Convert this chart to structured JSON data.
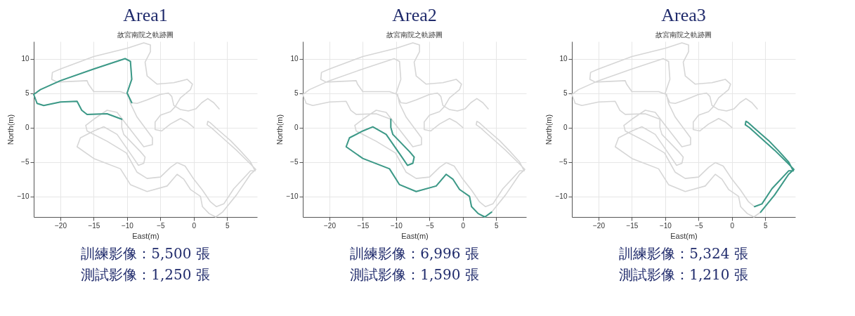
{
  "chart_data": [
    {
      "type": "line",
      "title": "Area1",
      "subtitle": "故宮南院之軌跡圖",
      "xlabel": "East(m)",
      "ylabel": "North(m)",
      "xlim": [
        -24,
        9.5
      ],
      "ylim": [
        -13,
        12.5
      ],
      "xticks": [
        -20,
        -15,
        -10,
        -5,
        0,
        5
      ],
      "yticks": [
        -10,
        -5,
        0,
        5,
        10
      ],
      "grid": true,
      "annotations": [
        "訓練影像：5,500 張",
        "測試影像：1,250 張"
      ],
      "series": [
        {
          "color": "#d6d6d6",
          "x": [
            3.8,
            3,
            2.1,
            1.2,
            0.3,
            -0.8,
            -2,
            -3,
            -3.3,
            -3.8,
            -5,
            -7,
            -8.5,
            -9.3,
            -10,
            -9.3,
            -9.5,
            -10.3,
            -15,
            -20,
            -23,
            -24,
            -23.5,
            -22.5,
            -20,
            -17.5,
            -16.8,
            -16,
            -13,
            -10.8,
            -10.8,
            -10.5,
            -8,
            -7.3,
            -7.5,
            -8.3,
            -9,
            -11.5,
            -13.5,
            -15,
            -17,
            -17.5,
            -15,
            -11,
            -9.5,
            -7,
            -4,
            -2.5,
            -1.5,
            -0.5,
            1,
            1.3,
            2.3,
            3.3,
            4.3,
            6.4,
            8.5,
            9.3,
            8.5,
            6.4,
            4.2,
            2.6,
            2,
            2.1,
            2.45,
            3.6,
            5.5,
            7,
            8.5,
            9.2,
            8.5,
            6,
            4.5,
            3.4,
            2.5,
            1.3,
            0,
            -1.3,
            -2.5,
            -3.5,
            -5,
            -7,
            -8.5,
            -9.2,
            -10.1,
            -13,
            -16,
            -16.2,
            -15,
            -13,
            -11.5,
            -10,
            -7.5,
            -6.2,
            -6.2,
            -8.5,
            -9.5,
            -9.8,
            -11,
            -15,
            -15.8,
            -16,
            -20.5,
            -21.3,
            -21.2,
            -20,
            -15,
            -10,
            -7.5,
            -6.5,
            -6.5,
            -7.3,
            -7,
            -5.5,
            -3,
            -1,
            -0.2,
            -0.5,
            -2,
            -2.8,
            -3.5,
            -5,
            -5.8,
            -5.8,
            -4.8,
            -3.5,
            -2,
            -1,
            0
          ],
          "values": [
            2.7,
            3.6,
            4.2,
            3.6,
            2.7,
            2.4,
            2.6,
            3.2,
            4.5,
            5,
            4.8,
            4,
            3.5,
            3.6,
            5,
            7,
            9.6,
            10,
            8.5,
            6.8,
            5.5,
            4.8,
            3.5,
            3.2,
            3.7,
            3.8,
            2.5,
            1.9,
            2,
            1.2,
            0,
            -1,
            -3.5,
            -4.3,
            -5.2,
            -5.5,
            -4.5,
            -1,
            0.1,
            -0.5,
            -1.5,
            -2.8,
            -4.5,
            -6,
            -8.3,
            -9.3,
            -8.5,
            -6.8,
            -7.5,
            -9,
            -10,
            -11.5,
            -12.5,
            -13,
            -12.3,
            -9.8,
            -6.8,
            -6.1,
            -5.3,
            -3.3,
            -1.4,
            0,
            0.4,
            0.9,
            0.7,
            -0.3,
            -1.9,
            -3.4,
            -5,
            -6.3,
            -6.3,
            -8.9,
            -11.1,
            -11.5,
            -10.8,
            -9.1,
            -7.5,
            -5.6,
            -5.1,
            -5.8,
            -7.2,
            -7.4,
            -6.5,
            -5.3,
            -3.7,
            -2,
            -0.5,
            0.3,
            1.2,
            2.5,
            2.2,
            0.3,
            -2.8,
            -2.5,
            -1.5,
            1.5,
            3.5,
            4.8,
            5.2,
            5.2,
            6.3,
            6.8,
            6.6,
            7,
            8,
            8.5,
            10.3,
            11.5,
            12.3,
            12,
            11,
            9.5,
            7.5,
            6.3,
            6.5,
            7,
            6.3,
            5.5,
            4.3,
            3,
            2.3,
            1.8,
            0.8,
            -0.3,
            -0.5,
            0.5,
            1.3,
            0.8,
            0
          ]
        },
        {
          "color": "#3c9a88",
          "x": [
            -9.3,
            -10,
            -9.3,
            -9.5,
            -10.3,
            -15,
            -20,
            -23,
            -24,
            -23.5,
            -22.5,
            -20,
            -17.5,
            -16.8,
            -16,
            -13,
            -10.8
          ],
          "values": [
            3.6,
            5,
            7,
            9.6,
            10,
            8.5,
            6.8,
            5.5,
            4.8,
            3.5,
            3.2,
            3.7,
            3.8,
            2.5,
            1.9,
            2,
            1.2
          ]
        }
      ]
    },
    {
      "type": "line",
      "title": "Area2",
      "subtitle": "故宮南院之軌跡圖",
      "xlabel": "East(m)",
      "ylabel": "North(m)",
      "xlim": [
        -24,
        9.5
      ],
      "ylim": [
        -13,
        12.5
      ],
      "xticks": [
        -20,
        -15,
        -10,
        -5,
        0,
        5
      ],
      "yticks": [
        -10,
        -5,
        0,
        5,
        10
      ],
      "grid": true,
      "annotations": [
        "訓練影像：6,996 張",
        "測試影像：1,590 張"
      ],
      "series": [
        {
          "color": "#d6d6d6",
          "x": [
            3.8,
            3,
            2.1,
            1.2,
            0.3,
            -0.8,
            -2,
            -3,
            -3.3,
            -3.8,
            -5,
            -7,
            -8.5,
            -9.3,
            -10,
            -9.3,
            -9.5,
            -10.3,
            -15,
            -20,
            -23,
            -24,
            -23.5,
            -22.5,
            -20,
            -17.5,
            -16.8,
            -16,
            -13,
            -10.8,
            -10.8,
            -10.5,
            -8,
            -7.3,
            -7.5,
            -8.3,
            -9,
            -11.5,
            -13.5,
            -15,
            -17,
            -17.5,
            -15,
            -11,
            -9.5,
            -7,
            -4,
            -2.5,
            -1.5,
            -0.5,
            1,
            1.3,
            2.3,
            3.3,
            4.3,
            6.4,
            8.5,
            9.3,
            8.5,
            6.4,
            4.2,
            2.6,
            2,
            2.1,
            2.45,
            3.6,
            5.5,
            7,
            8.5,
            9.2,
            8.5,
            6,
            4.5,
            3.4,
            2.5,
            1.3,
            0,
            -1.3,
            -2.5,
            -3.5,
            -5,
            -7,
            -8.5,
            -9.2,
            -10.1,
            -13,
            -16,
            -16.2,
            -15,
            -13,
            -11.5,
            -10,
            -7.5,
            -6.2,
            -6.2,
            -8.5,
            -9.5,
            -9.8,
            -11,
            -15,
            -15.8,
            -16,
            -20.5,
            -21.3,
            -21.2,
            -20,
            -15,
            -10,
            -7.5,
            -6.5,
            -6.5,
            -7.3,
            -7,
            -5.5,
            -3,
            -1,
            -0.2,
            -0.5,
            -2,
            -2.8,
            -3.5,
            -5,
            -5.8,
            -5.8,
            -4.8,
            -3.5,
            -2,
            -1,
            0
          ],
          "values": [
            2.7,
            3.6,
            4.2,
            3.6,
            2.7,
            2.4,
            2.6,
            3.2,
            4.5,
            5,
            4.8,
            4,
            3.5,
            3.6,
            5,
            7,
            9.6,
            10,
            8.5,
            6.8,
            5.5,
            4.8,
            3.5,
            3.2,
            3.7,
            3.8,
            2.5,
            1.9,
            2,
            1.2,
            0,
            -1,
            -3.5,
            -4.3,
            -5.2,
            -5.5,
            -4.5,
            -1,
            0.1,
            -0.5,
            -1.5,
            -2.8,
            -4.5,
            -6,
            -8.3,
            -9.3,
            -8.5,
            -6.8,
            -7.5,
            -9,
            -10,
            -11.5,
            -12.5,
            -13,
            -12.3,
            -9.8,
            -6.8,
            -6.1,
            -5.3,
            -3.3,
            -1.4,
            0,
            0.4,
            0.9,
            0.7,
            -0.3,
            -1.9,
            -3.4,
            -5,
            -6.3,
            -6.3,
            -8.9,
            -11.1,
            -11.5,
            -10.8,
            -9.1,
            -7.5,
            -5.6,
            -5.1,
            -5.8,
            -7.2,
            -7.4,
            -6.5,
            -5.3,
            -3.7,
            -2,
            -0.5,
            0.3,
            1.2,
            2.5,
            2.2,
            0.3,
            -2.8,
            -2.5,
            -1.5,
            1.5,
            3.5,
            4.8,
            5.2,
            5.2,
            6.3,
            6.8,
            6.6,
            7,
            8,
            8.5,
            10.3,
            11.5,
            12.3,
            12,
            11,
            9.5,
            7.5,
            6.3,
            6.5,
            7,
            6.3,
            5.5,
            4.3,
            3,
            2.3,
            1.8,
            0.8,
            -0.3,
            -0.5,
            0.5,
            1.3,
            0.8,
            0
          ]
        },
        {
          "color": "#3c9a88",
          "x": [
            -10.8,
            -10.8,
            -10.5,
            -8,
            -7.3,
            -7.5,
            -8.3,
            -9,
            -11.5,
            -13.5,
            -15,
            -17,
            -17.5,
            -15,
            -11,
            -9.5,
            -7,
            -4,
            -2.5,
            -1.5,
            -0.5,
            1,
            1.3,
            2.3,
            3.3,
            4.3
          ],
          "values": [
            1.2,
            0,
            -1,
            -3.5,
            -4.3,
            -5.2,
            -5.5,
            -4.5,
            -1,
            0.1,
            -0.5,
            -1.5,
            -2.8,
            -4.5,
            -6,
            -8.3,
            -9.3,
            -8.5,
            -6.8,
            -7.5,
            -9,
            -10,
            -11.5,
            -12.5,
            -13,
            -12.3
          ]
        }
      ]
    },
    {
      "type": "line",
      "title": "Area3",
      "subtitle": "故宮南院之軌跡圖",
      "xlabel": "East(m)",
      "ylabel": "North(m)",
      "xlim": [
        -24,
        9.5
      ],
      "ylim": [
        -13,
        12.5
      ],
      "xticks": [
        -20,
        -15,
        -10,
        -5,
        0,
        5
      ],
      "yticks": [
        -10,
        -5,
        0,
        5,
        10
      ],
      "grid": true,
      "annotations": [
        "訓練影像：5,324 張",
        "測試影像：1,210 張"
      ],
      "series": [
        {
          "color": "#d6d6d6",
          "x": [
            3.8,
            3,
            2.1,
            1.2,
            0.3,
            -0.8,
            -2,
            -3,
            -3.3,
            -3.8,
            -5,
            -7,
            -8.5,
            -9.3,
            -10,
            -9.3,
            -9.5,
            -10.3,
            -15,
            -20,
            -23,
            -24,
            -23.5,
            -22.5,
            -20,
            -17.5,
            -16.8,
            -16,
            -13,
            -10.8,
            -10.8,
            -10.5,
            -8,
            -7.3,
            -7.5,
            -8.3,
            -9,
            -11.5,
            -13.5,
            -15,
            -17,
            -17.5,
            -15,
            -11,
            -9.5,
            -7,
            -4,
            -2.5,
            -1.5,
            -0.5,
            1,
            1.3,
            2.3,
            3.3,
            4.3,
            6.4,
            8.5,
            9.3,
            8.5,
            6.4,
            4.2,
            2.6,
            2,
            2.1,
            2.45,
            3.6,
            5.5,
            7,
            8.5,
            9.2,
            8.5,
            6,
            4.5,
            3.4,
            2.5,
            1.3,
            0,
            -1.3,
            -2.5,
            -3.5,
            -5,
            -7,
            -8.5,
            -9.2,
            -10.1,
            -13,
            -16,
            -16.2,
            -15,
            -13,
            -11.5,
            -10,
            -7.5,
            -6.2,
            -6.2,
            -8.5,
            -9.5,
            -9.8,
            -11,
            -15,
            -15.8,
            -16,
            -20.5,
            -21.3,
            -21.2,
            -20,
            -15,
            -10,
            -7.5,
            -6.5,
            -6.5,
            -7.3,
            -7,
            -5.5,
            -3,
            -1,
            -0.2,
            -0.5,
            -2,
            -2.8,
            -3.5,
            -5,
            -5.8,
            -5.8,
            -4.8,
            -3.5,
            -2,
            -1,
            0
          ],
          "values": [
            2.7,
            3.6,
            4.2,
            3.6,
            2.7,
            2.4,
            2.6,
            3.2,
            4.5,
            5,
            4.8,
            4,
            3.5,
            3.6,
            5,
            7,
            9.6,
            10,
            8.5,
            6.8,
            5.5,
            4.8,
            3.5,
            3.2,
            3.7,
            3.8,
            2.5,
            1.9,
            2,
            1.2,
            0,
            -1,
            -3.5,
            -4.3,
            -5.2,
            -5.5,
            -4.5,
            -1,
            0.1,
            -0.5,
            -1.5,
            -2.8,
            -4.5,
            -6,
            -8.3,
            -9.3,
            -8.5,
            -6.8,
            -7.5,
            -9,
            -10,
            -11.5,
            -12.5,
            -13,
            -12.3,
            -9.8,
            -6.8,
            -6.1,
            -5.3,
            -3.3,
            -1.4,
            0,
            0.4,
            0.9,
            0.7,
            -0.3,
            -1.9,
            -3.4,
            -5,
            -6.3,
            -6.3,
            -8.9,
            -11.1,
            -11.5,
            -10.8,
            -9.1,
            -7.5,
            -5.6,
            -5.1,
            -5.8,
            -7.2,
            -7.4,
            -6.5,
            -5.3,
            -3.7,
            -2,
            -0.5,
            0.3,
            1.2,
            2.5,
            2.2,
            0.3,
            -2.8,
            -2.5,
            -1.5,
            1.5,
            3.5,
            4.8,
            5.2,
            5.2,
            6.3,
            6.8,
            6.6,
            7,
            8,
            8.5,
            10.3,
            11.5,
            12.3,
            12,
            11,
            9.5,
            7.5,
            6.3,
            6.5,
            7,
            6.3,
            5.5,
            4.3,
            3,
            2.3,
            1.8,
            0.8,
            -0.3,
            -0.5,
            0.5,
            1.3,
            0.8,
            0
          ]
        },
        {
          "color": "#3c9a88",
          "x": [
            4.3,
            6.4,
            8.5,
            9.3,
            8.5,
            6.4,
            4.2,
            2.6,
            2,
            2.1,
            2.45,
            3.6,
            5.5,
            7,
            8.5,
            9.2,
            8.5,
            6,
            4.5,
            3.4
          ],
          "values": [
            -12.3,
            -9.8,
            -6.8,
            -6.1,
            -5.3,
            -3.3,
            -1.4,
            0,
            0.4,
            0.9,
            0.7,
            -0.3,
            -1.9,
            -3.4,
            -5,
            -6.3,
            -6.3,
            -8.9,
            -11.1,
            -11.5
          ]
        }
      ]
    }
  ]
}
